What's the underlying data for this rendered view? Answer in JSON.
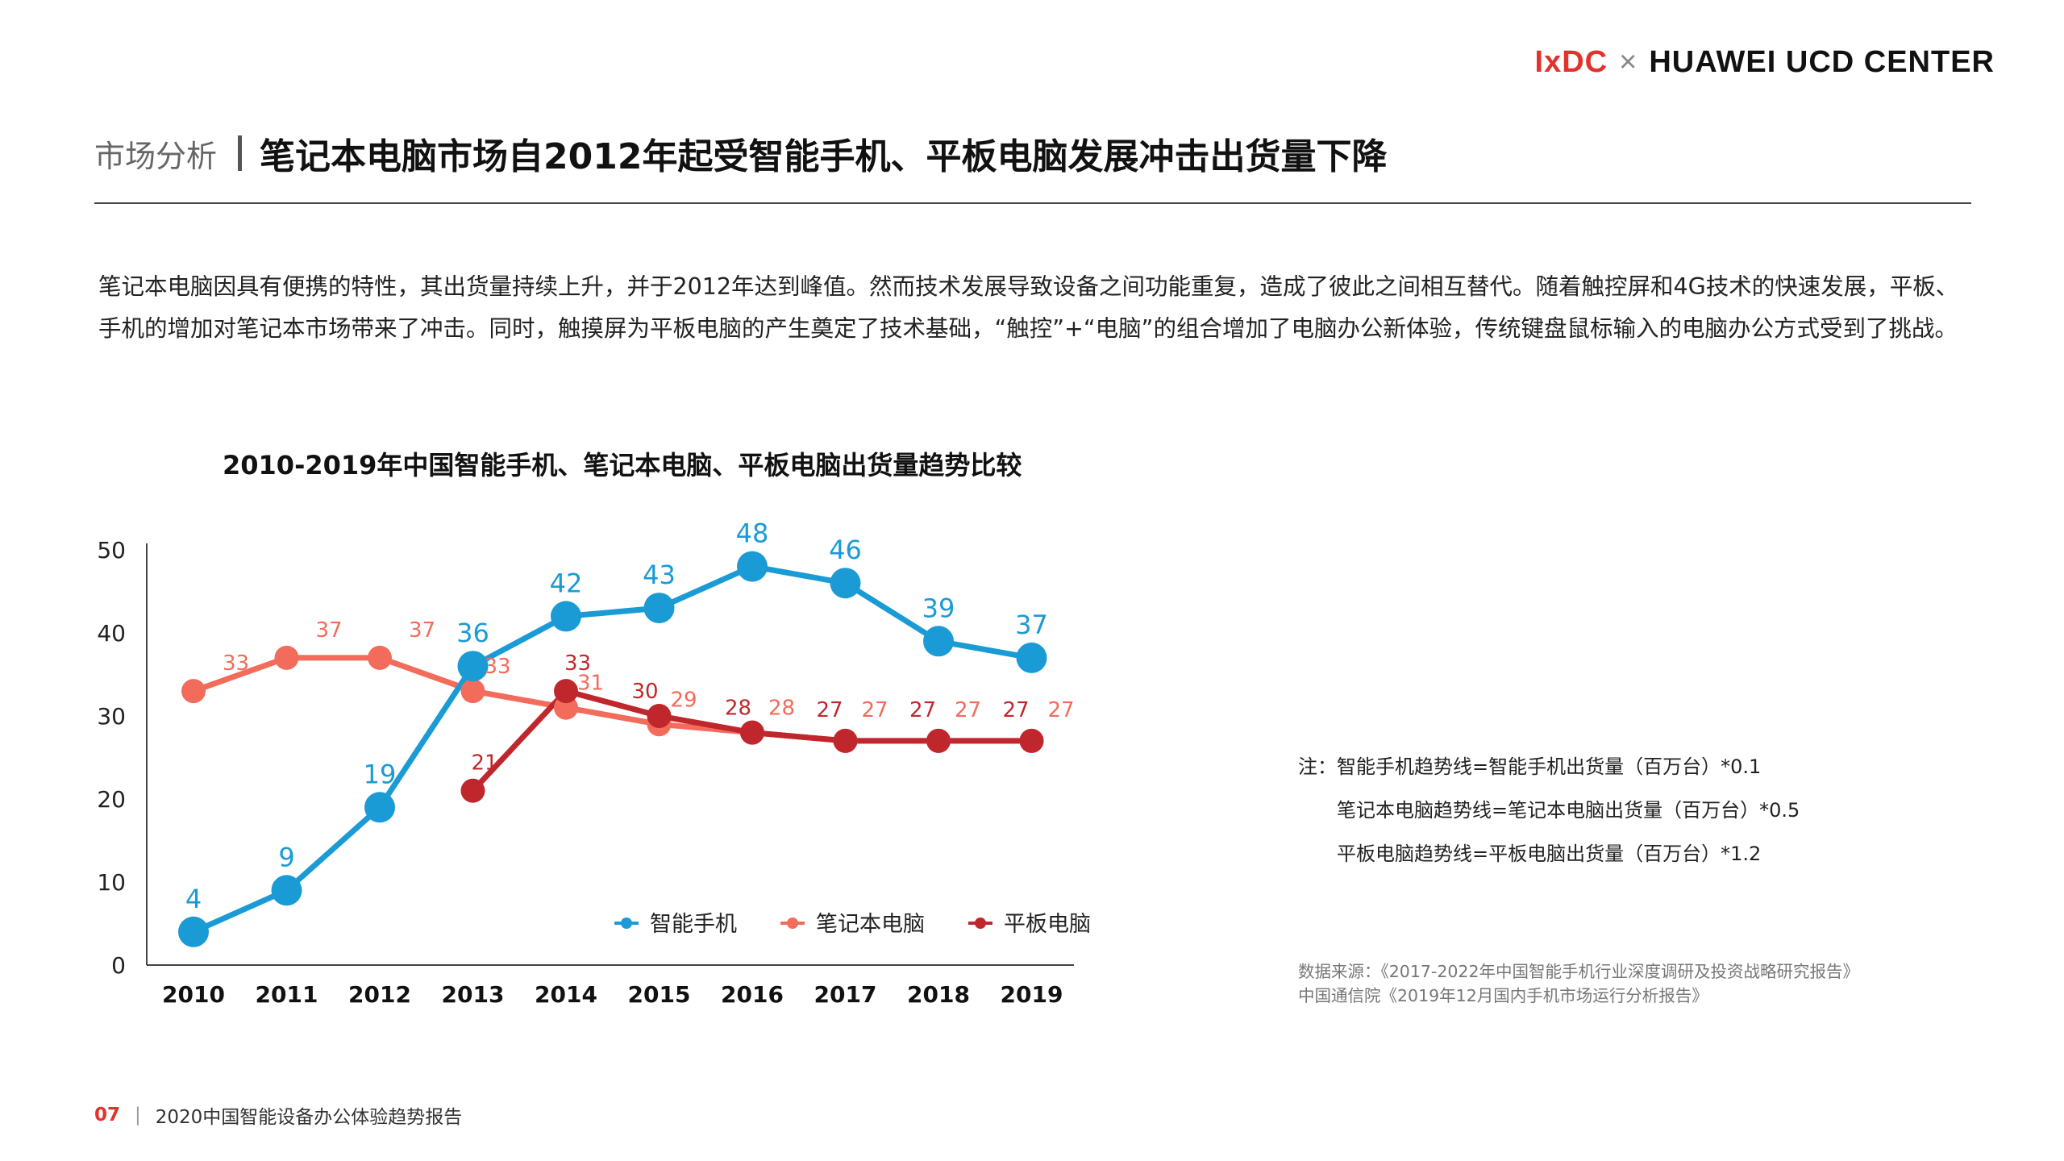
{
  "logo": {
    "left": "IxDC",
    "cross": "×",
    "right": "HUAWEI UCD CENTER"
  },
  "header": {
    "section": "市场分析",
    "title": "笔记本电脑市场自2012年起受智能手机、平板电脑发展冲击出货量下降"
  },
  "intro": "笔记本电脑因具有便携的特性，其出货量持续上升，并于2012年达到峰值。然而技术发展导致设备之间功能重复，造成了彼此之间相互替代。随着触控屏和4G技术的快速发展，平板、手机的增加对笔记本市场带来了冲击。同时，触摸屏为平板电脑的产生奠定了技术基础，“触控”+“电脑”的组合增加了电脑办公新体验，传统键盘鼠标输入的电脑办公方式受到了挑战。",
  "notes": {
    "line1": "注：智能手机趋势线=智能手机出货量（百万台）*0.1",
    "line2": "笔记本电脑趋势线=笔记本电脑出货量（百万台）*0.5",
    "line3": "平板电脑趋势线=平板电脑出货量（百万台）*1.2"
  },
  "sources": {
    "line1": "数据来源：《2017-2022年中国智能手机行业深度调研及投资战略研究报告》",
    "line2": "中国通信院《2019年12月国内手机市场运行分析报告》"
  },
  "footer": {
    "page": "07",
    "divider": "|",
    "report": "2020中国智能设备办公体验趋势报告"
  },
  "chart_data": {
    "type": "line",
    "title": "2010-2019年中国智能手机、笔记本电脑、平板电脑出货量趋势比较",
    "categories": [
      "2010",
      "2011",
      "2012",
      "2013",
      "2014",
      "2015",
      "2016",
      "2017",
      "2018",
      "2019"
    ],
    "ylim": [
      0,
      50
    ],
    "yticks": [
      0,
      10,
      20,
      30,
      40,
      50
    ],
    "grid": false,
    "legend_position": "bottom-right",
    "series": [
      {
        "name": "智能手机",
        "color": "#1a9bd6",
        "values": [
          4,
          9,
          19,
          36,
          42,
          43,
          48,
          46,
          39,
          37
        ]
      },
      {
        "name": "笔记本电脑",
        "color": "#f26b5b",
        "values": [
          33,
          37,
          37,
          33,
          31,
          29,
          28,
          27,
          27,
          27
        ]
      },
      {
        "name": "平板电脑",
        "color": "#c0272d",
        "values": [
          null,
          null,
          null,
          21,
          33,
          30,
          28,
          27,
          27,
          27
        ]
      }
    ]
  }
}
